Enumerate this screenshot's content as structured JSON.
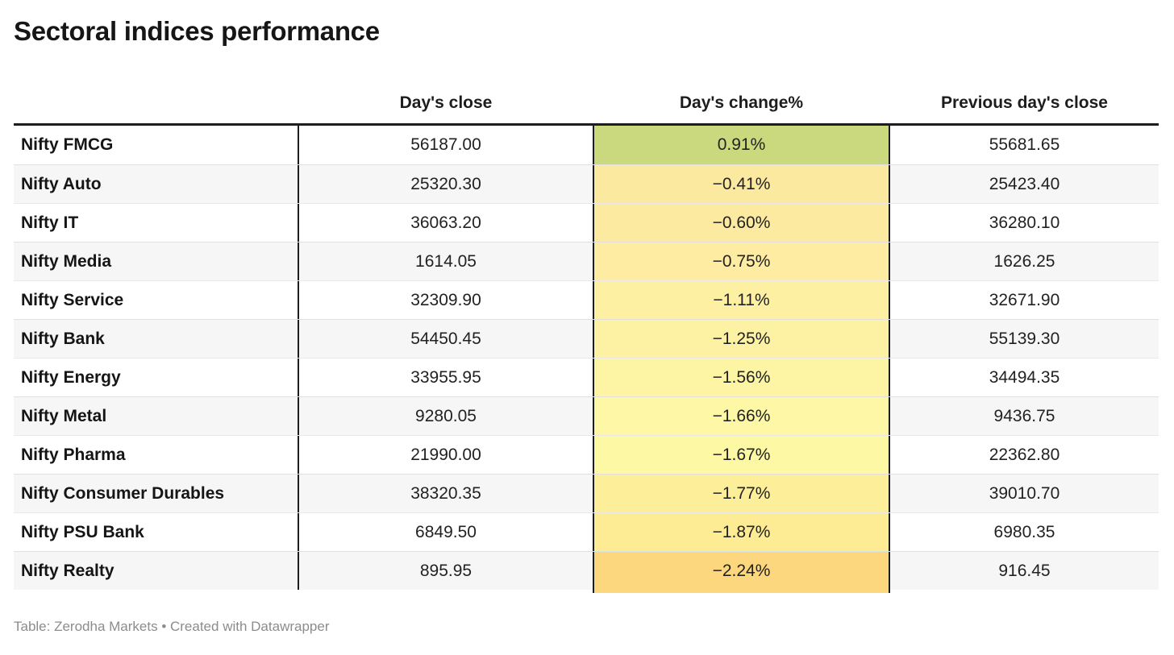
{
  "title": "Sectoral indices performance",
  "header": {
    "col_index": "",
    "col_close": "Day's close",
    "col_change": "Day's change%",
    "col_prev": "Previous day's close"
  },
  "colors": {
    "table_border": "#1d1d1d",
    "alt_row_bg": "#f6f6f6",
    "positive_cell": "#cbd97e",
    "negative_cell_max": "#fcd77d",
    "footer_text": "#8c8c8c"
  },
  "chart_data": {
    "type": "table",
    "title": "Sectoral indices performance",
    "columns": [
      "",
      "Day's close",
      "Day's change%",
      "Previous day's close"
    ],
    "rows": [
      {
        "name": "Nifty FMCG",
        "close": "56187.00",
        "change": "0.91%",
        "prev": "55681.65",
        "close_value": 56187.0,
        "change_value": 0.91,
        "prev_value": 55681.65,
        "change_bg": "#cbd97e"
      },
      {
        "name": "Nifty Auto",
        "close": "25320.30",
        "change": "−0.41%",
        "prev": "25423.40",
        "close_value": 25320.3,
        "change_value": -0.41,
        "prev_value": 25423.4,
        "change_bg": "#fce9a0"
      },
      {
        "name": "Nifty IT",
        "close": "36063.20",
        "change": "−0.60%",
        "prev": "36280.10",
        "close_value": 36063.2,
        "change_value": -0.6,
        "prev_value": 36280.1,
        "change_bg": "#fceaa0"
      },
      {
        "name": "Nifty Media",
        "close": "1614.05",
        "change": "−0.75%",
        "prev": "1626.25",
        "close_value": 1614.05,
        "change_value": -0.75,
        "prev_value": 1626.25,
        "change_bg": "#fdeca1"
      },
      {
        "name": "Nifty Service",
        "close": "32309.90",
        "change": "−1.11%",
        "prev": "32671.90",
        "close_value": 32309.9,
        "change_value": -1.11,
        "prev_value": 32671.9,
        "change_bg": "#fdf0a2"
      },
      {
        "name": "Nifty Bank",
        "close": "54450.45",
        "change": "−1.25%",
        "prev": "55139.30",
        "close_value": 54450.45,
        "change_value": -1.25,
        "prev_value": 55139.3,
        "change_bg": "#fdf2a3"
      },
      {
        "name": "Nifty Energy",
        "close": "33955.95",
        "change": "−1.56%",
        "prev": "34494.35",
        "close_value": 33955.95,
        "change_value": -1.56,
        "prev_value": 34494.35,
        "change_bg": "#fdf5a4"
      },
      {
        "name": "Nifty Metal",
        "close": "9280.05",
        "change": "−1.66%",
        "prev": "9436.75",
        "close_value": 9280.05,
        "change_value": -1.66,
        "prev_value": 9436.75,
        "change_bg": "#fdf7a6"
      },
      {
        "name": "Nifty Pharma",
        "close": "21990.00",
        "change": "−1.67%",
        "prev": "22362.80",
        "close_value": 21990.0,
        "change_value": -1.67,
        "prev_value": 22362.8,
        "change_bg": "#fdf8a4"
      },
      {
        "name": "Nifty Consumer Durables",
        "close": "38320.35",
        "change": "−1.77%",
        "prev": "39010.70",
        "close_value": 38320.35,
        "change_value": -1.77,
        "prev_value": 39010.7,
        "change_bg": "#fdef99"
      },
      {
        "name": "Nifty PSU Bank",
        "close": "6849.50",
        "change": "−1.87%",
        "prev": "6980.35",
        "close_value": 6849.5,
        "change_value": -1.87,
        "prev_value": 6980.35,
        "change_bg": "#fdec94"
      },
      {
        "name": "Nifty Realty",
        "close": "895.95",
        "change": "−2.24%",
        "prev": "916.45",
        "close_value": 895.95,
        "change_value": -2.24,
        "prev_value": 916.45,
        "change_bg": "#fcd77d"
      }
    ]
  },
  "footer": {
    "label": "Table: ",
    "source": "Zerodha Markets",
    "created_with": " • Created with ",
    "tool": "Datawrapper"
  }
}
